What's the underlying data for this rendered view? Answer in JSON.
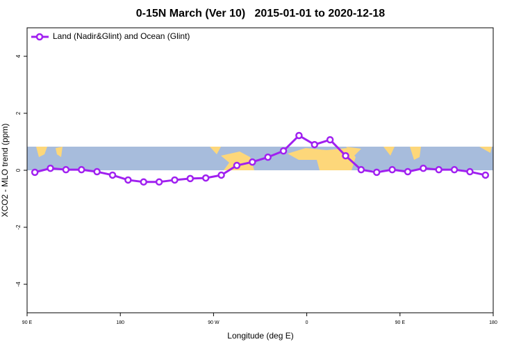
{
  "chart_data": {
    "type": "line",
    "title": "0-15N March (Ver 10)   2015-01-01 to 2020-12-18",
    "xlabel": "Longitude (deg E)",
    "ylabel": "XCO2 - MLO trend (ppm)",
    "x": [
      97.5,
      112.5,
      127.5,
      142.5,
      157.5,
      172.5,
      187.5,
      202.5,
      217.5,
      232.5,
      247.5,
      262.5,
      277.5,
      292.5,
      307.5,
      322.5,
      337.5,
      352.5,
      367.5,
      382.5,
      397.5,
      412.5,
      427.5,
      442.5,
      457.5,
      472.5,
      487.5,
      502.5,
      517.5,
      532.5
    ],
    "series": [
      {
        "name": "Land (Nadir&Glint) and Ocean (Glint)",
        "color": "#a020f0",
        "values": [
          -0.07,
          0.07,
          0.02,
          0.02,
          -0.05,
          -0.17,
          -0.34,
          -0.41,
          -0.41,
          -0.34,
          -0.29,
          -0.27,
          -0.17,
          0.17,
          0.29,
          0.46,
          0.68,
          1.22,
          0.9,
          1.07,
          0.51,
          0.02,
          -0.07,
          0.02,
          -0.05,
          0.07,
          0.02,
          0.02,
          -0.05,
          -0.17
        ]
      }
    ],
    "xlim": [
      90,
      540
    ],
    "xticks": [
      {
        "value": 90,
        "label": "90 E"
      },
      180,
      {
        "value": 270,
        "label": "90 W"
      },
      {
        "value": 360,
        "label": "0"
      },
      {
        "value": 450,
        "label": "90 E"
      },
      {
        "value": 540,
        "label": "180"
      }
    ],
    "ylim": [
      -5,
      5
    ],
    "yticks": [
      -4,
      -2,
      0,
      2,
      4
    ],
    "legend": "top-left"
  }
}
